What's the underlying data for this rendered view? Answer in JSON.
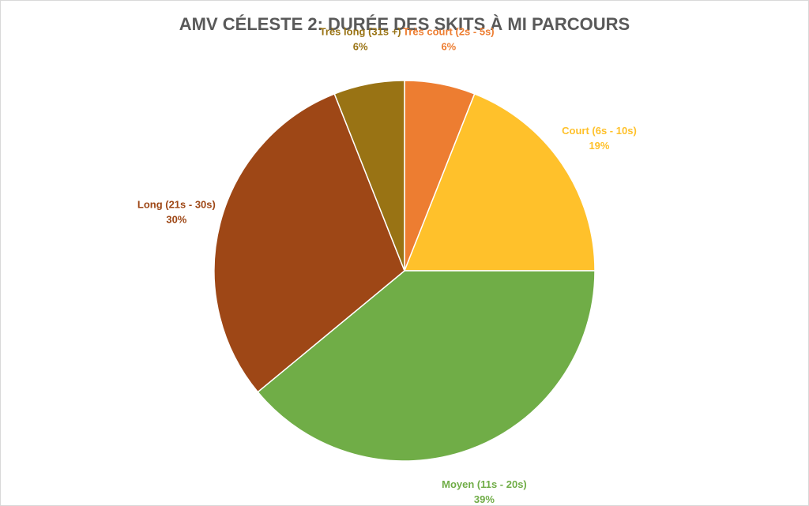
{
  "chart_data": {
    "type": "pie",
    "title": "AMV CÉLESTE 2: DURÉE DES SKITS À MI PARCOURS",
    "categories": [
      "Très court (2s - 5s)",
      "Court (6s - 10s)",
      "Moyen (11s - 20s)",
      "Long (21s - 30s)",
      "Très long (31s +)"
    ],
    "values": [
      6,
      19,
      39,
      30,
      6
    ],
    "value_labels": [
      "6%",
      "19%",
      "39%",
      "30%",
      "6%"
    ],
    "colors": [
      "#ED7D31",
      "#FFC12B",
      "#70AD47",
      "#9E4716",
      "#997314"
    ]
  }
}
